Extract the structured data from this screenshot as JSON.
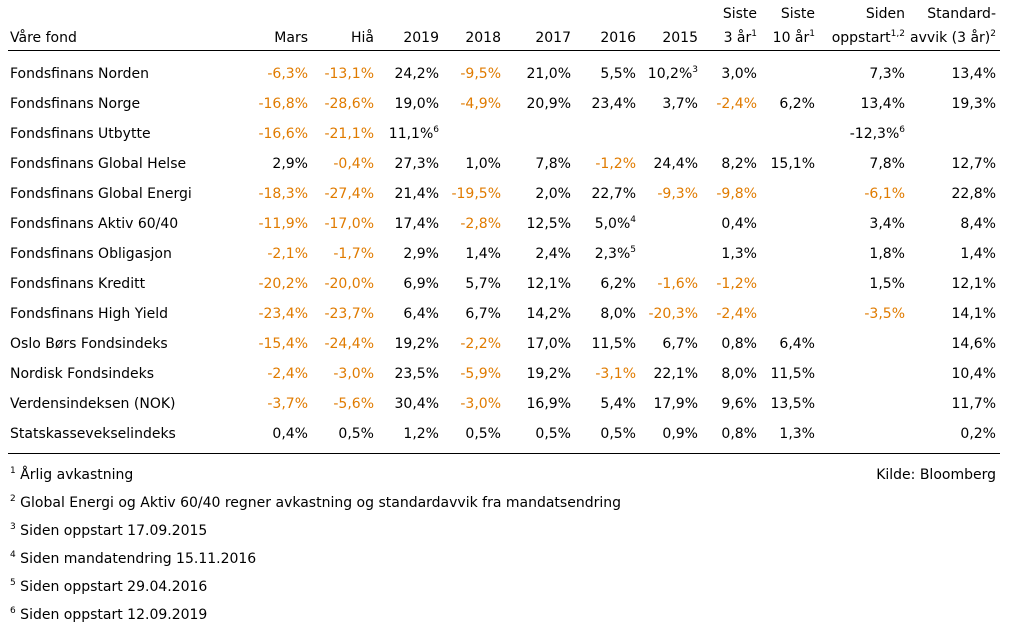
{
  "header": {
    "fund": "Våre fond",
    "mars": "Mars",
    "hia": "Hiå",
    "y2019": "2019",
    "y2018": "2018",
    "y2017": "2017",
    "y2016": "2016",
    "y2015": "2015",
    "siste3_line1": "Siste",
    "siste3_line2": "3 år",
    "siste3_sup": "1",
    "siste10_line1": "Siste",
    "siste10_line2": "10 år",
    "siste10_sup": "1",
    "siden_line1": "Siden",
    "siden_line2": "oppstart",
    "siden_sup": "1,2",
    "std_line1": "Standard-",
    "std_line2": "avvik (3 år)",
    "std_sup": "2"
  },
  "rows": [
    {
      "name": "Fondsfinans Norden",
      "cells": [
        {
          "v": "-6,3%",
          "neg": true
        },
        {
          "v": "-13,1%",
          "neg": true
        },
        {
          "v": "24,2%"
        },
        {
          "v": "-9,5%",
          "neg": true
        },
        {
          "v": "21,0%"
        },
        {
          "v": "5,5%"
        },
        {
          "v": "10,2%",
          "sup": "3"
        },
        {
          "v": "3,0%"
        },
        {
          "v": ""
        },
        {
          "v": "7,3%"
        },
        {
          "v": "13,4%"
        }
      ]
    },
    {
      "name": "Fondsfinans Norge",
      "cells": [
        {
          "v": "-16,8%",
          "neg": true
        },
        {
          "v": "-28,6%",
          "neg": true
        },
        {
          "v": "19,0%"
        },
        {
          "v": "-4,9%",
          "neg": true
        },
        {
          "v": "20,9%"
        },
        {
          "v": "23,4%"
        },
        {
          "v": "3,7%"
        },
        {
          "v": "-2,4%",
          "neg": true
        },
        {
          "v": "6,2%"
        },
        {
          "v": "13,4%"
        },
        {
          "v": "19,3%"
        }
      ]
    },
    {
      "name": "Fondsfinans Utbytte",
      "cells": [
        {
          "v": "-16,6%",
          "neg": true
        },
        {
          "v": "-21,1%",
          "neg": true
        },
        {
          "v": "11,1%",
          "sup": "6"
        },
        {
          "v": ""
        },
        {
          "v": ""
        },
        {
          "v": ""
        },
        {
          "v": ""
        },
        {
          "v": ""
        },
        {
          "v": ""
        },
        {
          "v": "-12,3%",
          "sup": "6"
        },
        {
          "v": ""
        }
      ]
    },
    {
      "name": "Fondsfinans Global Helse",
      "cells": [
        {
          "v": "2,9%"
        },
        {
          "v": "-0,4%",
          "neg": true
        },
        {
          "v": "27,3%"
        },
        {
          "v": "1,0%"
        },
        {
          "v": "7,8%"
        },
        {
          "v": "-1,2%",
          "neg": true
        },
        {
          "v": "24,4%"
        },
        {
          "v": "8,2%"
        },
        {
          "v": "15,1%"
        },
        {
          "v": "7,8%"
        },
        {
          "v": "12,7%"
        }
      ]
    },
    {
      "name": "Fondsfinans Global Energi",
      "cells": [
        {
          "v": "-18,3%",
          "neg": true
        },
        {
          "v": "-27,4%",
          "neg": true
        },
        {
          "v": "21,4%"
        },
        {
          "v": "-19,5%",
          "neg": true
        },
        {
          "v": "2,0%"
        },
        {
          "v": "22,7%"
        },
        {
          "v": "-9,3%",
          "neg": true
        },
        {
          "v": "-9,8%",
          "neg": true
        },
        {
          "v": ""
        },
        {
          "v": "-6,1%",
          "neg": true
        },
        {
          "v": "22,8%"
        }
      ]
    },
    {
      "name": "Fondsfinans Aktiv 60/40",
      "cells": [
        {
          "v": "-11,9%",
          "neg": true
        },
        {
          "v": "-17,0%",
          "neg": true
        },
        {
          "v": "17,4%"
        },
        {
          "v": "-2,8%",
          "neg": true
        },
        {
          "v": "12,5%"
        },
        {
          "v": "5,0%",
          "sup": "4"
        },
        {
          "v": ""
        },
        {
          "v": "0,4%"
        },
        {
          "v": ""
        },
        {
          "v": "3,4%"
        },
        {
          "v": "8,4%"
        }
      ]
    },
    {
      "name": "Fondsfinans Obligasjon",
      "cells": [
        {
          "v": "-2,1%",
          "neg": true
        },
        {
          "v": "-1,7%",
          "neg": true
        },
        {
          "v": "2,9%"
        },
        {
          "v": "1,4%"
        },
        {
          "v": "2,4%"
        },
        {
          "v": "2,3%",
          "sup": "5"
        },
        {
          "v": ""
        },
        {
          "v": "1,3%"
        },
        {
          "v": ""
        },
        {
          "v": "1,8%"
        },
        {
          "v": "1,4%"
        }
      ]
    },
    {
      "name": "Fondsfinans Kreditt",
      "cells": [
        {
          "v": "-20,2%",
          "neg": true
        },
        {
          "v": "-20,0%",
          "neg": true
        },
        {
          "v": "6,9%"
        },
        {
          "v": "5,7%"
        },
        {
          "v": "12,1%"
        },
        {
          "v": "6,2%"
        },
        {
          "v": "-1,6%",
          "neg": true
        },
        {
          "v": "-1,2%",
          "neg": true
        },
        {
          "v": ""
        },
        {
          "v": "1,5%"
        },
        {
          "v": "12,1%"
        }
      ]
    },
    {
      "name": "Fondsfinans High Yield",
      "cells": [
        {
          "v": "-23,4%",
          "neg": true
        },
        {
          "v": "-23,7%",
          "neg": true
        },
        {
          "v": "6,4%"
        },
        {
          "v": "6,7%"
        },
        {
          "v": "14,2%"
        },
        {
          "v": "8,0%"
        },
        {
          "v": "-20,3%",
          "neg": true
        },
        {
          "v": "-2,4%",
          "neg": true
        },
        {
          "v": ""
        },
        {
          "v": "-3,5%",
          "neg": true
        },
        {
          "v": "14,1%"
        }
      ]
    },
    {
      "name": "Oslo Børs Fondsindeks",
      "cells": [
        {
          "v": "-15,4%",
          "neg": true
        },
        {
          "v": "-24,4%",
          "neg": true
        },
        {
          "v": "19,2%"
        },
        {
          "v": "-2,2%",
          "neg": true
        },
        {
          "v": "17,0%"
        },
        {
          "v": "11,5%"
        },
        {
          "v": "6,7%"
        },
        {
          "v": "0,8%"
        },
        {
          "v": "6,4%"
        },
        {
          "v": ""
        },
        {
          "v": "14,6%"
        }
      ]
    },
    {
      "name": "Nordisk Fondsindeks",
      "cells": [
        {
          "v": "-2,4%",
          "neg": true
        },
        {
          "v": "-3,0%",
          "neg": true
        },
        {
          "v": "23,5%"
        },
        {
          "v": "-5,9%",
          "neg": true
        },
        {
          "v": "19,2%"
        },
        {
          "v": "-3,1%",
          "neg": true
        },
        {
          "v": "22,1%"
        },
        {
          "v": "8,0%"
        },
        {
          "v": "11,5%"
        },
        {
          "v": ""
        },
        {
          "v": "10,4%"
        }
      ]
    },
    {
      "name": "Verdensindeksen (NOK)",
      "cells": [
        {
          "v": "-3,7%",
          "neg": true
        },
        {
          "v": "-5,6%",
          "neg": true
        },
        {
          "v": "30,4%"
        },
        {
          "v": "-3,0%",
          "neg": true
        },
        {
          "v": "16,9%"
        },
        {
          "v": "5,4%"
        },
        {
          "v": "17,9%"
        },
        {
          "v": "9,6%"
        },
        {
          "v": "13,5%"
        },
        {
          "v": ""
        },
        {
          "v": "11,7%"
        }
      ]
    },
    {
      "name": "Statskassevekselindeks",
      "cells": [
        {
          "v": "0,4%"
        },
        {
          "v": "0,5%"
        },
        {
          "v": "1,2%"
        },
        {
          "v": "0,5%"
        },
        {
          "v": "0,5%"
        },
        {
          "v": "0,5%"
        },
        {
          "v": "0,9%"
        },
        {
          "v": "0,8%"
        },
        {
          "v": "1,3%"
        },
        {
          "v": ""
        },
        {
          "v": "0,2%"
        }
      ]
    }
  ],
  "footnotes": [
    {
      "num": "1",
      "text": "Årlig avkastning"
    },
    {
      "num": "2",
      "text": "Global Energi og Aktiv 60/40 regner avkastning og standardavvik fra mandatsendring"
    },
    {
      "num": "3",
      "text": "Siden oppstart 17.09.2015"
    },
    {
      "num": "4",
      "text": "Siden mandatendring 15.11.2016"
    },
    {
      "num": "5",
      "text": "Siden oppstart 29.04.2016"
    },
    {
      "num": "6",
      "text": "Siden oppstart 12.09.2019"
    }
  ],
  "source": "Kilde: Bloomberg",
  "colors": {
    "negative": "#E07B00",
    "text": "#000000"
  }
}
